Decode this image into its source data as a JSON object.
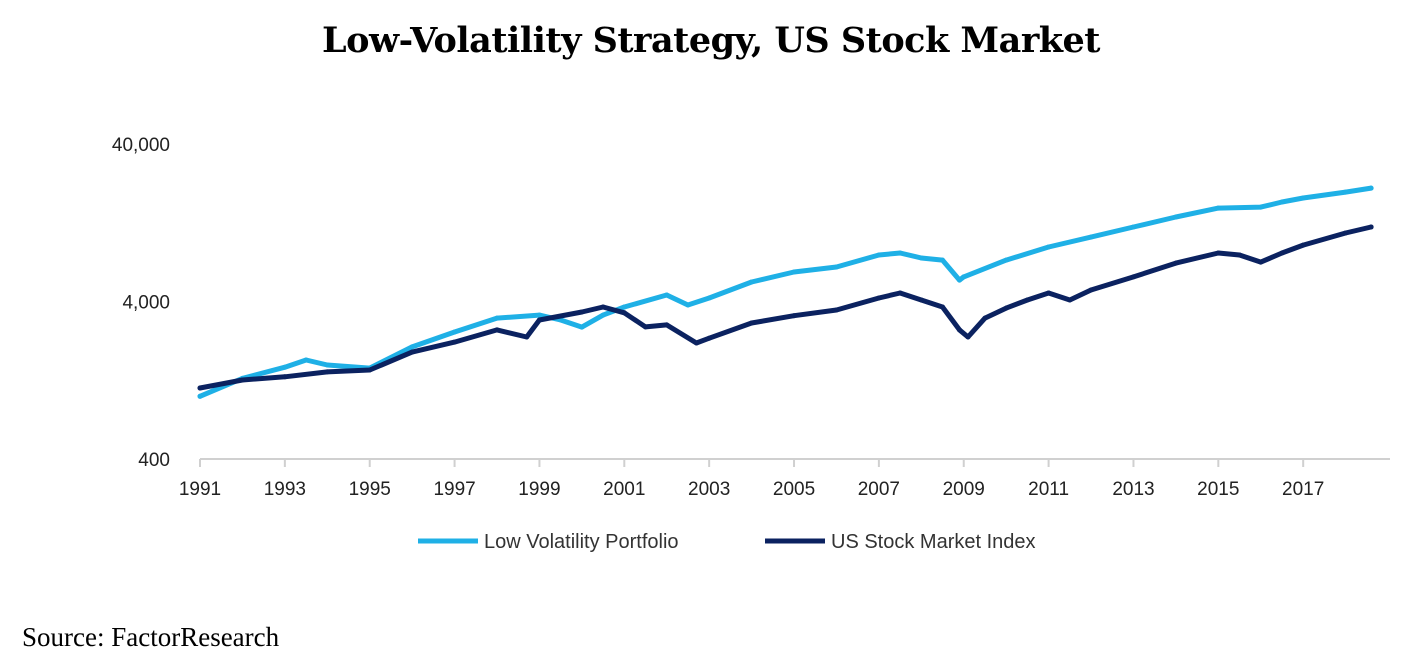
{
  "chart_data": {
    "type": "line",
    "title": "Low-Volatility Strategy, US Stock Market",
    "xlabel": "",
    "ylabel": "",
    "yscale": "log",
    "ylim": [
      400,
      40000
    ],
    "xlim": [
      1991,
      2019
    ],
    "yticks": [
      "400",
      "4,000",
      "40,000"
    ],
    "ytick_values": [
      400,
      4000,
      40000
    ],
    "xticks": [
      "1991",
      "1993",
      "1995",
      "1997",
      "1999",
      "2001",
      "2003",
      "2005",
      "2007",
      "2009",
      "2011",
      "2013",
      "2015",
      "2017"
    ],
    "grid": false,
    "legend_position": "bottom",
    "series": [
      {
        "name": "Low Volatility Portfolio",
        "color": "#1fb0e6",
        "x": [
          1991,
          1992,
          1993,
          1993.5,
          1994,
          1995,
          1996,
          1997,
          1998,
          1999,
          1999.5,
          2000,
          2000.5,
          2001,
          2002,
          2002.5,
          2003,
          2004,
          2005,
          2006,
          2007,
          2007.5,
          2008,
          2008.5,
          2008.9,
          2009,
          2010,
          2011,
          2012,
          2013,
          2014,
          2015,
          2016,
          2016.5,
          2017,
          2018,
          2018.6
        ],
        "y": [
          1000,
          1300,
          1530,
          1700,
          1580,
          1510,
          2060,
          2560,
          3140,
          3280,
          3050,
          2750,
          3280,
          3690,
          4400,
          3800,
          4210,
          5320,
          6160,
          6620,
          7890,
          8130,
          7550,
          7330,
          5470,
          5730,
          7330,
          8870,
          10260,
          11880,
          13750,
          15680,
          15900,
          17130,
          18170,
          19800,
          21000
        ]
      },
      {
        "name": "US Stock Market Index",
        "color": "#0b2260",
        "x": [
          1991,
          1992,
          1993,
          1994,
          1995,
          1996,
          1997,
          1998,
          1998.7,
          1999,
          2000,
          2000.5,
          2001,
          2001.5,
          2002,
          2002.7,
          2003,
          2004,
          2005,
          2006,
          2007,
          2007.5,
          2008,
          2008.5,
          2008.9,
          2009.1,
          2009.5,
          2010,
          2010.5,
          2011,
          2011.5,
          2012,
          2013,
          2014,
          2015,
          2015.5,
          2016,
          2016.5,
          2017,
          2018,
          2018.6
        ],
        "y": [
          1130,
          1270,
          1330,
          1430,
          1470,
          1910,
          2210,
          2640,
          2380,
          3050,
          3430,
          3690,
          3390,
          2760,
          2840,
          2180,
          2340,
          2920,
          3250,
          3530,
          4210,
          4530,
          4090,
          3690,
          2640,
          2380,
          3140,
          3630,
          4090,
          4530,
          4090,
          4730,
          5730,
          7010,
          8130,
          7890,
          7120,
          8130,
          9130,
          10890,
          11880
        ]
      }
    ]
  },
  "source": "Source: FactorResearch"
}
